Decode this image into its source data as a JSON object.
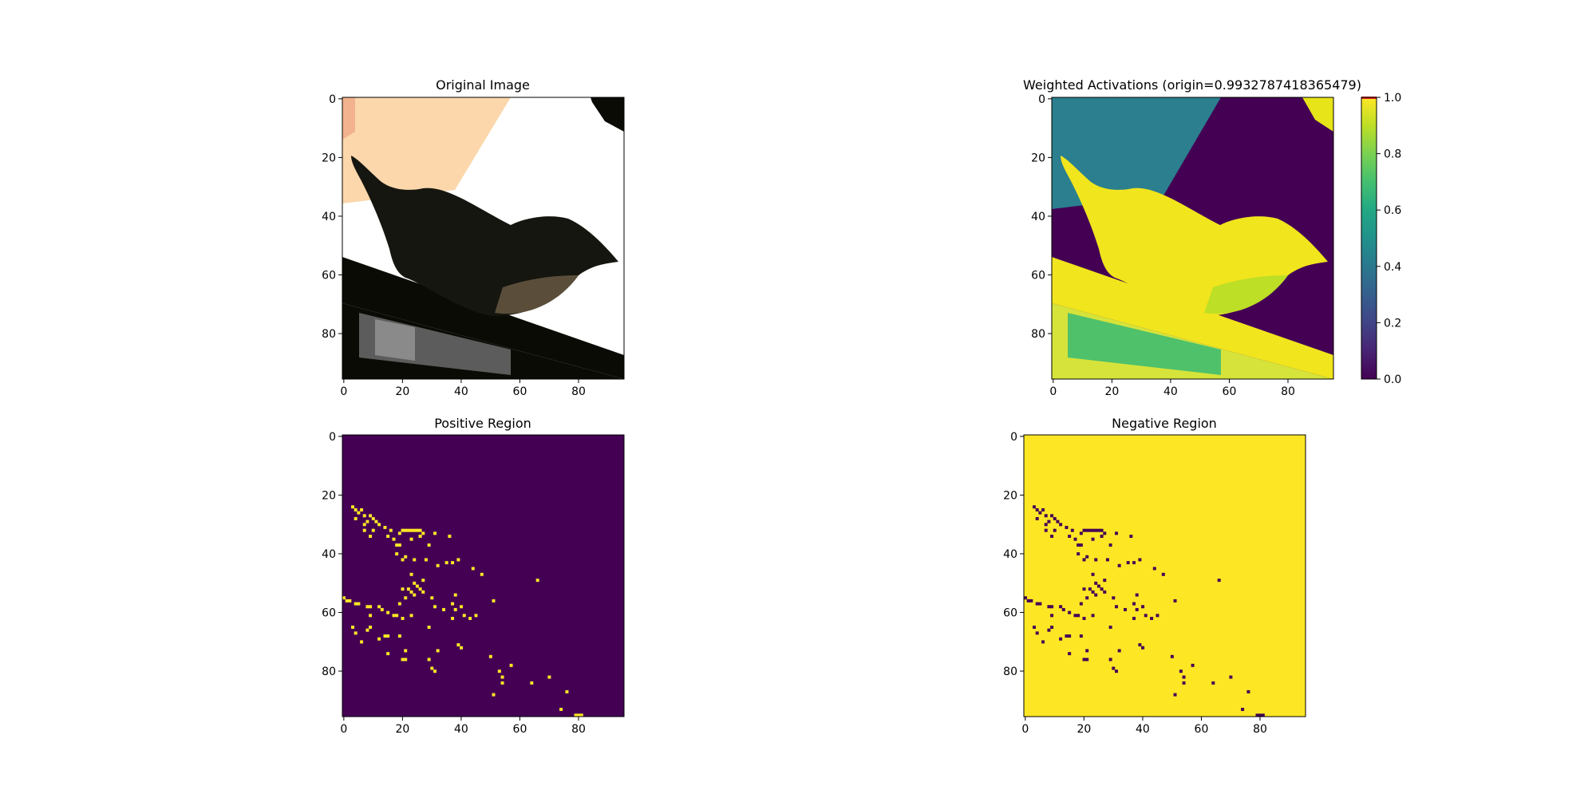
{
  "chart_data": [
    {
      "type": "heatmap",
      "title": "Original Image",
      "xlabel": "",
      "ylabel": "",
      "xlim": [
        -0.5,
        95.5
      ],
      "ylim": [
        95.5,
        -0.5
      ],
      "xticks": [
        0,
        20,
        40,
        60,
        80
      ],
      "yticks": [
        0,
        20,
        40,
        60,
        80
      ],
      "content": "rgb-photo",
      "colors": {
        "peach": "#fbd7ab",
        "white": "#ffffff",
        "black": "#0b0b06",
        "bird": "#1a1a10",
        "bird_belly": "#5a4e3a",
        "window": "#5c5c5c"
      }
    },
    {
      "type": "heatmap",
      "title": "Weighted Activations (origin=0.9932787418365479)",
      "xlabel": "",
      "ylabel": "",
      "xlim": [
        -0.5,
        95.5
      ],
      "ylim": [
        95.5,
        -0.5
      ],
      "xticks": [
        0,
        20,
        40,
        60,
        80
      ],
      "yticks": [
        0,
        20,
        40,
        60,
        80
      ],
      "colormap": "viridis",
      "colorbar": {
        "min": 0.0,
        "max": 1.0,
        "ticks": [
          "0.0",
          "0.2",
          "0.4",
          "0.6",
          "0.8",
          "1.0"
        ],
        "overflow_color": "#d62728"
      },
      "colors": {
        "dark": "#440154",
        "teal": "#2b7f8e",
        "yellow": "#f1e51d",
        "green": "#4fc16b"
      }
    },
    {
      "type": "heatmap",
      "title": "Positive Region",
      "xlabel": "",
      "ylabel": "",
      "xlim": [
        -0.5,
        95.5
      ],
      "ylim": [
        95.5,
        -0.5
      ],
      "xticks": [
        0,
        20,
        40,
        60,
        80
      ],
      "yticks": [
        0,
        20,
        40,
        60,
        80
      ],
      "colormap": "viridis",
      "background_value": 0,
      "marked_value": 1,
      "marked_pixels": [
        [
          3,
          24
        ],
        [
          4,
          25
        ],
        [
          6,
          25
        ],
        [
          5,
          26
        ],
        [
          7,
          27
        ],
        [
          9,
          27
        ],
        [
          4,
          28
        ],
        [
          10,
          28
        ],
        [
          8,
          29
        ],
        [
          11,
          29
        ],
        [
          12,
          30
        ],
        [
          7,
          30
        ],
        [
          14,
          31
        ],
        [
          20,
          32
        ],
        [
          21,
          32
        ],
        [
          22,
          32
        ],
        [
          23,
          32
        ],
        [
          24,
          32
        ],
        [
          25,
          32
        ],
        [
          26,
          32
        ],
        [
          7,
          32
        ],
        [
          10,
          32
        ],
        [
          16,
          32
        ],
        [
          19,
          33
        ],
        [
          27,
          33
        ],
        [
          31,
          33
        ],
        [
          9,
          34
        ],
        [
          15,
          34
        ],
        [
          26,
          34
        ],
        [
          36,
          34
        ],
        [
          17,
          35
        ],
        [
          23,
          35
        ],
        [
          18,
          37
        ],
        [
          19,
          37
        ],
        [
          29,
          37
        ],
        [
          18,
          40
        ],
        [
          21,
          41
        ],
        [
          20,
          42
        ],
        [
          24,
          42
        ],
        [
          28,
          42
        ],
        [
          35,
          43
        ],
        [
          37,
          43
        ],
        [
          39,
          42
        ],
        [
          32,
          44
        ],
        [
          44,
          45
        ],
        [
          47,
          47
        ],
        [
          23,
          47
        ],
        [
          27,
          49
        ],
        [
          66,
          49
        ],
        [
          24,
          50
        ],
        [
          25,
          51
        ],
        [
          20,
          52
        ],
        [
          22,
          52
        ],
        [
          26,
          52
        ],
        [
          27,
          53
        ],
        [
          23,
          53
        ],
        [
          24,
          54
        ],
        [
          38,
          54
        ],
        [
          21,
          55
        ],
        [
          30,
          55
        ],
        [
          0,
          55
        ],
        [
          51,
          56
        ],
        [
          1,
          56
        ],
        [
          2,
          56
        ],
        [
          4,
          57
        ],
        [
          5,
          57
        ],
        [
          19,
          57
        ],
        [
          37,
          57
        ],
        [
          8,
          58
        ],
        [
          9,
          58
        ],
        [
          12,
          58
        ],
        [
          31,
          58
        ],
        [
          40,
          58
        ],
        [
          34,
          59
        ],
        [
          38,
          59
        ],
        [
          13,
          59
        ],
        [
          15,
          60
        ],
        [
          17,
          61
        ],
        [
          9,
          61
        ],
        [
          18,
          61
        ],
        [
          23,
          61
        ],
        [
          41,
          61
        ],
        [
          45,
          61
        ],
        [
          37,
          62
        ],
        [
          43,
          62
        ],
        [
          20,
          62
        ],
        [
          3,
          65
        ],
        [
          9,
          65
        ],
        [
          29,
          65
        ],
        [
          8,
          66
        ],
        [
          4,
          67
        ],
        [
          14,
          68
        ],
        [
          15,
          68
        ],
        [
          19,
          68
        ],
        [
          12,
          69
        ],
        [
          6,
          70
        ],
        [
          39,
          71
        ],
        [
          40,
          72
        ],
        [
          21,
          73
        ],
        [
          32,
          73
        ],
        [
          15,
          74
        ],
        [
          50,
          75
        ],
        [
          20,
          76
        ],
        [
          21,
          76
        ],
        [
          29,
          76
        ],
        [
          57,
          78
        ],
        [
          30,
          79
        ],
        [
          53,
          80
        ],
        [
          31,
          80
        ],
        [
          54,
          82
        ],
        [
          64,
          84
        ],
        [
          54,
          84
        ],
        [
          70,
          82
        ],
        [
          51,
          88
        ],
        [
          76,
          87
        ],
        [
          74,
          93
        ],
        [
          79,
          95
        ],
        [
          80,
          95
        ],
        [
          81,
          95
        ]
      ]
    },
    {
      "type": "heatmap",
      "title": "Negative Region",
      "xlabel": "",
      "ylabel": "",
      "xlim": [
        -0.5,
        95.5
      ],
      "ylim": [
        95.5,
        -0.5
      ],
      "xticks": [
        0,
        20,
        40,
        60,
        80
      ],
      "yticks": [
        0,
        20,
        40,
        60,
        80
      ],
      "colormap": "viridis",
      "background_value": 1,
      "marked_value": 0,
      "marked_pixels": [
        [
          3,
          24
        ],
        [
          4,
          25
        ],
        [
          6,
          25
        ],
        [
          5,
          26
        ],
        [
          7,
          27
        ],
        [
          9,
          27
        ],
        [
          4,
          28
        ],
        [
          10,
          28
        ],
        [
          8,
          29
        ],
        [
          11,
          29
        ],
        [
          12,
          30
        ],
        [
          7,
          30
        ],
        [
          14,
          31
        ],
        [
          20,
          32
        ],
        [
          21,
          32
        ],
        [
          22,
          32
        ],
        [
          23,
          32
        ],
        [
          24,
          32
        ],
        [
          25,
          32
        ],
        [
          26,
          32
        ],
        [
          7,
          32
        ],
        [
          10,
          32
        ],
        [
          16,
          32
        ],
        [
          19,
          33
        ],
        [
          27,
          33
        ],
        [
          31,
          33
        ],
        [
          9,
          34
        ],
        [
          15,
          34
        ],
        [
          26,
          34
        ],
        [
          36,
          34
        ],
        [
          17,
          35
        ],
        [
          23,
          35
        ],
        [
          18,
          37
        ],
        [
          19,
          37
        ],
        [
          29,
          37
        ],
        [
          18,
          40
        ],
        [
          21,
          41
        ],
        [
          20,
          42
        ],
        [
          24,
          42
        ],
        [
          28,
          42
        ],
        [
          35,
          43
        ],
        [
          37,
          43
        ],
        [
          39,
          42
        ],
        [
          32,
          44
        ],
        [
          44,
          45
        ],
        [
          47,
          47
        ],
        [
          23,
          47
        ],
        [
          27,
          49
        ],
        [
          66,
          49
        ],
        [
          24,
          50
        ],
        [
          25,
          51
        ],
        [
          20,
          52
        ],
        [
          22,
          52
        ],
        [
          26,
          52
        ],
        [
          27,
          53
        ],
        [
          23,
          53
        ],
        [
          24,
          54
        ],
        [
          38,
          54
        ],
        [
          21,
          55
        ],
        [
          30,
          55
        ],
        [
          0,
          55
        ],
        [
          51,
          56
        ],
        [
          1,
          56
        ],
        [
          2,
          56
        ],
        [
          4,
          57
        ],
        [
          5,
          57
        ],
        [
          19,
          57
        ],
        [
          37,
          57
        ],
        [
          8,
          58
        ],
        [
          9,
          58
        ],
        [
          12,
          58
        ],
        [
          31,
          58
        ],
        [
          40,
          58
        ],
        [
          34,
          59
        ],
        [
          38,
          59
        ],
        [
          13,
          59
        ],
        [
          15,
          60
        ],
        [
          17,
          61
        ],
        [
          9,
          61
        ],
        [
          18,
          61
        ],
        [
          23,
          61
        ],
        [
          41,
          61
        ],
        [
          45,
          61
        ],
        [
          37,
          62
        ],
        [
          43,
          62
        ],
        [
          20,
          62
        ],
        [
          3,
          65
        ],
        [
          9,
          65
        ],
        [
          29,
          65
        ],
        [
          8,
          66
        ],
        [
          4,
          67
        ],
        [
          14,
          68
        ],
        [
          15,
          68
        ],
        [
          19,
          68
        ],
        [
          12,
          69
        ],
        [
          6,
          70
        ],
        [
          39,
          71
        ],
        [
          40,
          72
        ],
        [
          21,
          73
        ],
        [
          32,
          73
        ],
        [
          15,
          74
        ],
        [
          50,
          75
        ],
        [
          20,
          76
        ],
        [
          21,
          76
        ],
        [
          29,
          76
        ],
        [
          57,
          78
        ],
        [
          30,
          79
        ],
        [
          53,
          80
        ],
        [
          31,
          80
        ],
        [
          54,
          82
        ],
        [
          64,
          84
        ],
        [
          54,
          84
        ],
        [
          70,
          82
        ],
        [
          51,
          88
        ],
        [
          76,
          87
        ],
        [
          74,
          93
        ],
        [
          79,
          95
        ],
        [
          80,
          95
        ],
        [
          81,
          95
        ]
      ]
    }
  ]
}
